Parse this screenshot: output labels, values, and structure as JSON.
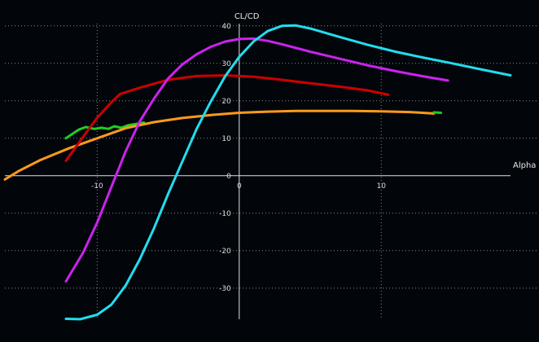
{
  "chart_data": {
    "type": "line",
    "xlabel": "Alpha",
    "ylabel": "CL/CD",
    "xlim": [
      -16.5,
      19.1
    ],
    "ylim": [
      -38.3,
      40.6
    ],
    "xticks": [
      -10,
      0,
      10
    ],
    "yticks": [
      -30,
      -20,
      -10,
      0,
      10,
      20,
      30,
      40
    ],
    "grid": true,
    "series": [
      {
        "color": "#22cc22",
        "points": [
          [
            -12.2,
            10
          ],
          [
            -11.3,
            12.3
          ],
          [
            -10.8,
            13
          ],
          [
            -10.2,
            12.5
          ],
          [
            -9.7,
            12.8
          ],
          [
            -9.2,
            12.5
          ],
          [
            -8.8,
            13.2
          ],
          [
            -8.3,
            12.8
          ],
          [
            -7.8,
            13.5
          ],
          [
            -7.3,
            13.8
          ],
          [
            -6.7,
            14.2
          ]
        ]
      },
      {
        "color": "#ff9a1a",
        "points": [
          [
            -16.5,
            -1
          ],
          [
            -15.5,
            1.3
          ],
          [
            -14,
            4.2
          ],
          [
            -12,
            7.3
          ],
          [
            -10,
            10
          ],
          [
            -8,
            12.7
          ],
          [
            -6,
            14.3
          ],
          [
            -4,
            15.4
          ],
          [
            -2,
            16.2
          ],
          [
            0,
            16.8
          ],
          [
            2,
            17.1
          ],
          [
            4,
            17.3
          ],
          [
            6,
            17.3
          ],
          [
            8,
            17.3
          ],
          [
            10,
            17.2
          ],
          [
            12,
            17
          ],
          [
            13.7,
            16.6
          ]
        ]
      },
      {
        "color": "#1ccc1c",
        "points": [
          [
            13.7,
            16.9
          ],
          [
            14.2,
            16.8
          ]
        ]
      },
      {
        "color": "#cc0000",
        "points": [
          [
            -12.2,
            4
          ],
          [
            -11,
            10.3
          ],
          [
            -10,
            15.5
          ],
          [
            -9,
            19.6
          ],
          [
            -8.4,
            21.8
          ],
          [
            -7,
            23.5
          ],
          [
            -5,
            25.6
          ],
          [
            -3,
            26.6
          ],
          [
            -1,
            26.8
          ],
          [
            1,
            26.4
          ],
          [
            3,
            25.6
          ],
          [
            5,
            24.7
          ],
          [
            7,
            23.8
          ],
          [
            9,
            22.8
          ],
          [
            10.5,
            21.6
          ]
        ]
      },
      {
        "color": "#cc22ee",
        "points": [
          [
            -12.2,
            -28.2
          ],
          [
            -11,
            -20.6
          ],
          [
            -10,
            -12.5
          ],
          [
            -9,
            -3
          ],
          [
            -8,
            6.5
          ],
          [
            -7,
            14.5
          ],
          [
            -6,
            20.6
          ],
          [
            -5,
            26
          ],
          [
            -4,
            29.7
          ],
          [
            -3,
            32.4
          ],
          [
            -2,
            34.4
          ],
          [
            -1,
            35.8
          ],
          [
            0,
            36.5
          ],
          [
            1,
            36.6
          ],
          [
            2,
            36
          ],
          [
            3,
            35.1
          ],
          [
            5,
            33.1
          ],
          [
            7,
            31.3
          ],
          [
            9,
            29.5
          ],
          [
            11,
            27.9
          ],
          [
            13,
            26.5
          ],
          [
            14.7,
            25.4
          ]
        ]
      },
      {
        "color": "#22ddee",
        "points": [
          [
            -12.2,
            -38.2
          ],
          [
            -11.2,
            -38.3
          ],
          [
            -10,
            -37.1
          ],
          [
            -9,
            -34.4
          ],
          [
            -8,
            -29.3
          ],
          [
            -7,
            -22.3
          ],
          [
            -6,
            -14
          ],
          [
            -5,
            -4.8
          ],
          [
            -4,
            3.8
          ],
          [
            -3,
            12.5
          ],
          [
            -2,
            19.8
          ],
          [
            -1,
            26.5
          ],
          [
            0,
            31.7
          ],
          [
            1,
            35.8
          ],
          [
            2,
            38.6
          ],
          [
            3,
            40
          ],
          [
            4,
            40.1
          ],
          [
            5,
            39.3
          ],
          [
            7,
            37.1
          ],
          [
            9,
            35
          ],
          [
            11,
            33.1
          ],
          [
            13,
            31.5
          ],
          [
            15,
            30
          ],
          [
            17,
            28.4
          ],
          [
            19.1,
            26.8
          ]
        ]
      }
    ]
  }
}
